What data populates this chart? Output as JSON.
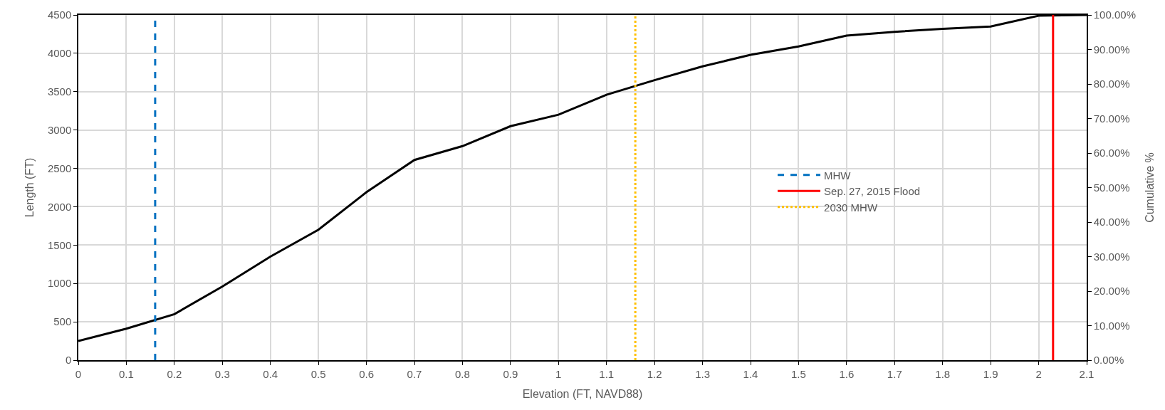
{
  "chart_data": {
    "type": "line",
    "xlabel": "Elevation (FT, NAVD88)",
    "ylabel": "Length (FT)",
    "y2label": "Cumulative %",
    "x": [
      0,
      0.1,
      0.2,
      0.3,
      0.4,
      0.5,
      0.6,
      0.7,
      0.8,
      0.9,
      1.0,
      1.1,
      1.2,
      1.3,
      1.4,
      1.5,
      1.6,
      1.7,
      1.8,
      1.9,
      2.0,
      2.1
    ],
    "series": [
      {
        "color": "#000000",
        "values": [
          250,
          410,
          600,
          960,
          1350,
          1700,
          2190,
          2610,
          2790,
          3050,
          3200,
          3460,
          3650,
          3830,
          3980,
          4090,
          4230,
          4280,
          4320,
          4350,
          4490,
          4500
        ]
      },
      {
        "name": "MHW",
        "color": "#0070c0",
        "line_style": "dashed",
        "x": [
          0.16,
          0.16
        ],
        "values": [
          0,
          4500
        ]
      },
      {
        "name": "Sep. 27, 2015 Flood",
        "color": "#ff0000",
        "line_style": "solid",
        "x": [
          2.03,
          2.03
        ],
        "values": [
          0,
          4500
        ]
      },
      {
        "name": "2030 MHW",
        "color": "#ffc000",
        "line_style": "dotted",
        "x": [
          1.16,
          1.16
        ],
        "values": [
          0,
          4500
        ]
      }
    ],
    "xlim": [
      0,
      2.1
    ],
    "xticks": [
      0,
      0.1,
      0.2,
      0.3,
      0.4,
      0.5,
      0.6,
      0.7,
      0.8,
      0.9,
      {
        "value": 1.0,
        "label": "1"
      },
      1.1,
      1.2,
      1.3,
      1.4,
      1.5,
      1.6,
      1.7,
      1.8,
      1.9,
      2,
      2.1
    ],
    "ylim": [
      0,
      4500
    ],
    "yticks": [
      0,
      500,
      1000,
      1500,
      2000,
      2500,
      3000,
      3500,
      4000,
      4500
    ],
    "y2lim": [
      0,
      100
    ],
    "y2ticks": [
      {
        "value": 0,
        "label": "0.00%"
      },
      {
        "value": 10,
        "label": "10.00%"
      },
      {
        "value": 20,
        "label": "20.00%"
      },
      {
        "value": 30,
        "label": "30.00%"
      },
      {
        "value": 40,
        "label": "40.00%"
      },
      {
        "value": 50,
        "label": "50.00%"
      },
      {
        "value": 60,
        "label": "60.00%"
      },
      {
        "value": 70,
        "label": "70.00%"
      },
      {
        "value": 80,
        "label": "80.00%"
      },
      {
        "value": 90,
        "label": "90.00%"
      },
      {
        "value": 100,
        "label": "100.00%"
      }
    ],
    "grid": true,
    "legend": "right",
    "marker": "none",
    "line_style": "solid"
  }
}
